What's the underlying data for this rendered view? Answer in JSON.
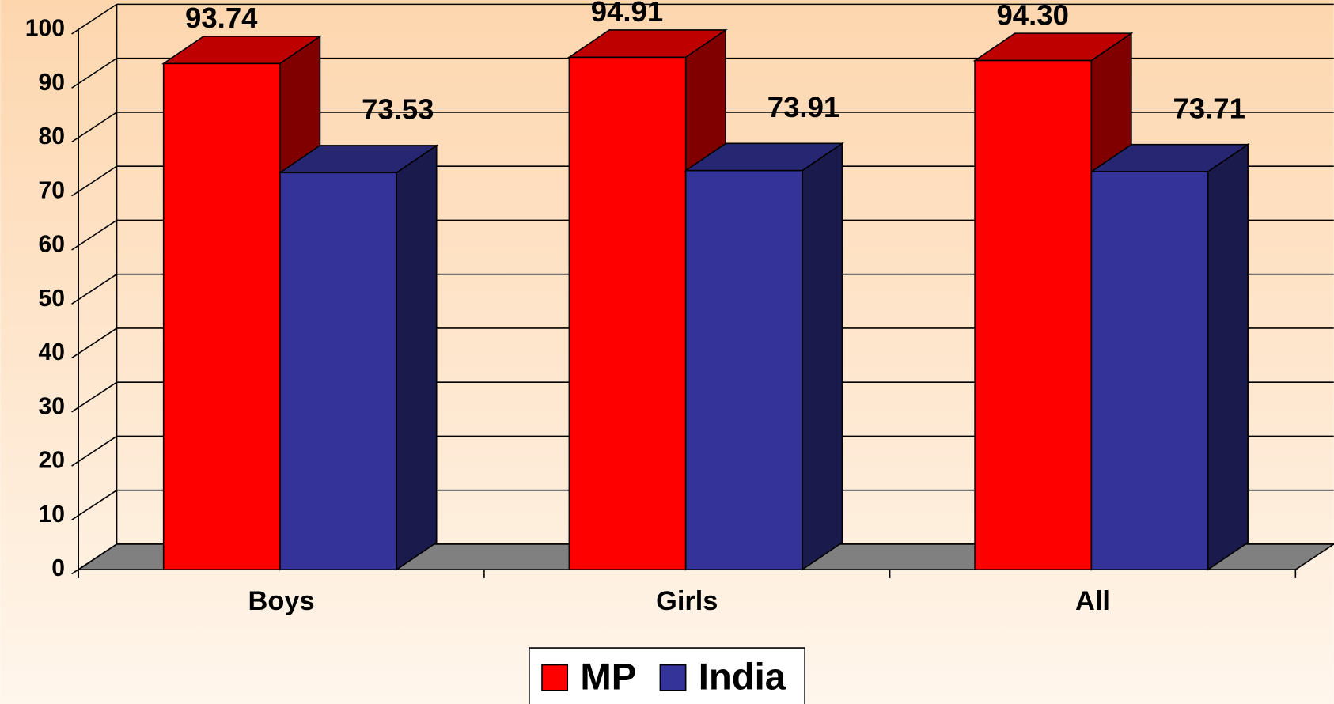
{
  "chart_data": {
    "type": "bar3d",
    "categories": [
      "Boys",
      "Girls",
      "All"
    ],
    "series": [
      {
        "name": "MP",
        "color": "#ff0000",
        "values": [
          93.74,
          94.91,
          94.3
        ],
        "value_labels": [
          "93.74",
          "94.91",
          "94.30"
        ]
      },
      {
        "name": "India",
        "color": "#333399",
        "values": [
          73.53,
          73.91,
          73.71
        ],
        "value_labels": [
          "73.53",
          "73.91",
          "73.71"
        ]
      }
    ],
    "ylim": [
      0,
      100
    ],
    "yticks": [
      0,
      10,
      20,
      30,
      40,
      50,
      60,
      70,
      80,
      90,
      100
    ],
    "grid": true
  }
}
